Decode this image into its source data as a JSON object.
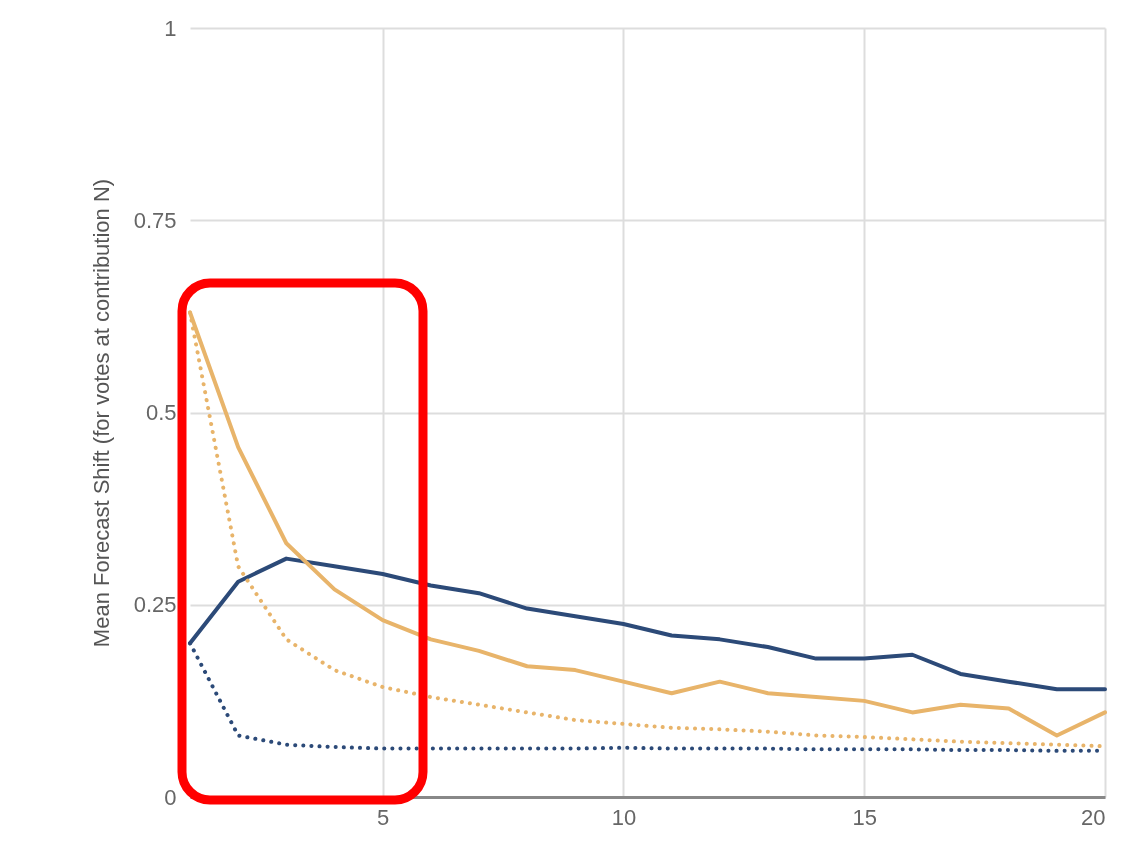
{
  "chart_data": {
    "type": "line",
    "ylabel": "Mean Forecast Shift (for votes at contribution N)",
    "x": [
      1,
      2,
      3,
      4,
      5,
      6,
      7,
      8,
      9,
      10,
      11,
      12,
      13,
      14,
      15,
      16,
      17,
      18,
      19,
      20
    ],
    "series": [
      {
        "color": "#2c4a78",
        "line_style": "solid",
        "values": [
          0.2,
          0.28,
          0.31,
          0.3,
          0.29,
          0.275,
          0.265,
          0.245,
          0.235,
          0.225,
          0.21,
          0.205,
          0.195,
          0.18,
          0.18,
          0.185,
          0.16,
          0.15,
          0.14,
          0.14
        ]
      },
      {
        "color": "#e8b46a",
        "line_style": "solid",
        "values": [
          0.63,
          0.455,
          0.33,
          0.27,
          0.23,
          0.205,
          0.19,
          0.17,
          0.165,
          0.15,
          0.135,
          0.15,
          0.135,
          0.13,
          0.125,
          0.11,
          0.12,
          0.115,
          0.08,
          0.11
        ]
      },
      {
        "color": "#e8b46a",
        "line_style": "dotted",
        "values": [
          0.63,
          0.3,
          0.205,
          0.165,
          0.143,
          0.13,
          0.12,
          0.11,
          0.1,
          0.095,
          0.09,
          0.088,
          0.085,
          0.08,
          0.078,
          0.075,
          0.072,
          0.07,
          0.068,
          0.066
        ]
      },
      {
        "color": "#2c4a78",
        "line_style": "dotted",
        "values": [
          0.2,
          0.08,
          0.068,
          0.065,
          0.063,
          0.063,
          0.063,
          0.063,
          0.063,
          0.064,
          0.063,
          0.063,
          0.063,
          0.062,
          0.062,
          0.062,
          0.061,
          0.061,
          0.06,
          0.06
        ]
      }
    ],
    "xlim": [
      1,
      20
    ],
    "xticks": [
      5,
      10,
      15,
      20
    ],
    "ylim": [
      0,
      1
    ],
    "yticks": [
      0,
      0.25,
      0.5,
      0.75,
      1
    ],
    "grid": true
  }
}
